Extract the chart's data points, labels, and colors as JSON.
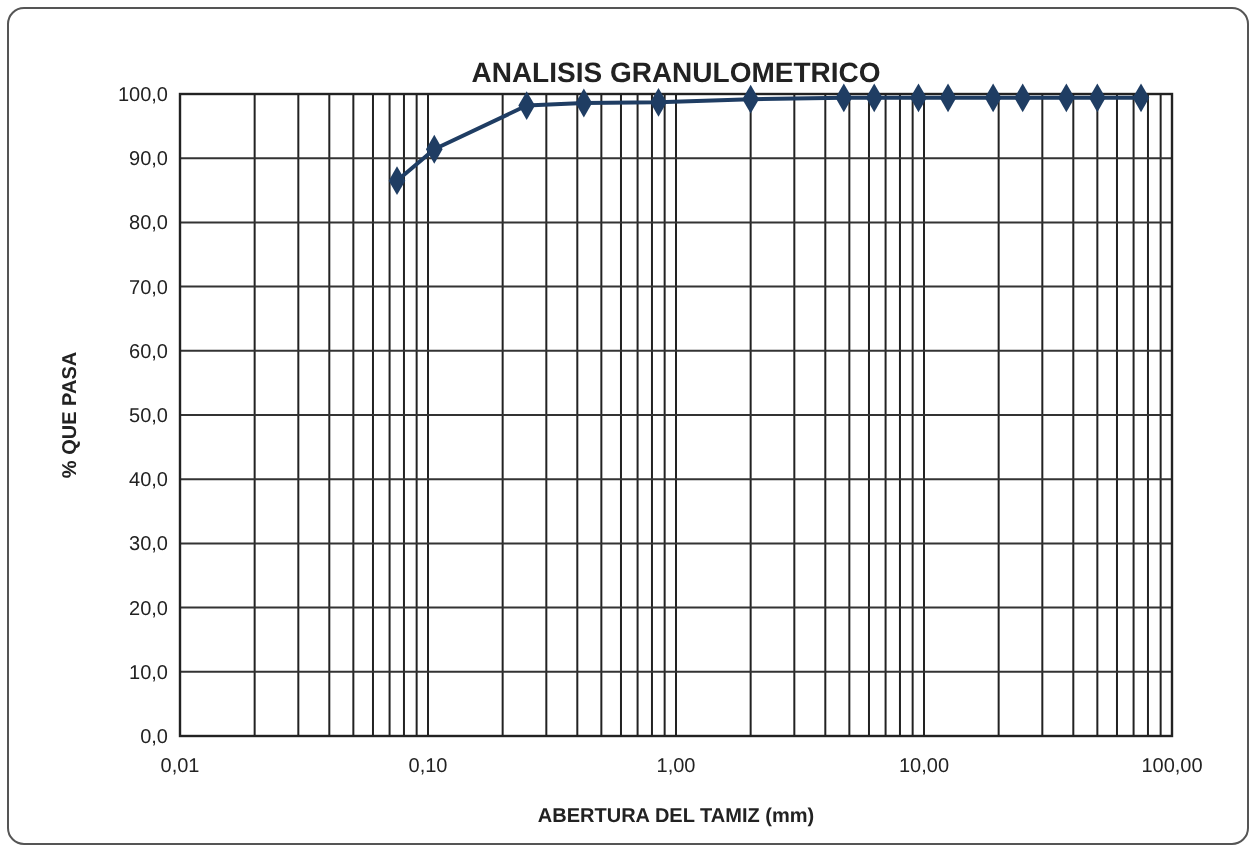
{
  "chart_data": {
    "type": "line",
    "title": "ANALISIS GRANULOMETRICO",
    "xlabel": "ABERTURA DEL TAMIZ (mm)",
    "ylabel": "% QUE PASA",
    "log": "x",
    "grid": true,
    "marker": "diamond",
    "line_style": "solid",
    "xlim": [
      0.01,
      100
    ],
    "ylim": [
      0,
      100
    ],
    "xticks": [
      {
        "value": 0.01,
        "label": "0,01"
      },
      {
        "value": 0.02,
        "label": null
      },
      {
        "value": 0.03,
        "label": null
      },
      {
        "value": 0.04,
        "label": null
      },
      {
        "value": 0.05,
        "label": null
      },
      {
        "value": 0.06,
        "label": null
      },
      {
        "value": 0.07,
        "label": null
      },
      {
        "value": 0.08,
        "label": null
      },
      {
        "value": 0.09,
        "label": null
      },
      {
        "value": 0.1,
        "label": "0,10"
      },
      {
        "value": 0.2,
        "label": null
      },
      {
        "value": 0.3,
        "label": null
      },
      {
        "value": 0.4,
        "label": null
      },
      {
        "value": 0.5,
        "label": null
      },
      {
        "value": 0.6,
        "label": null
      },
      {
        "value": 0.7,
        "label": null
      },
      {
        "value": 0.8,
        "label": null
      },
      {
        "value": 0.9,
        "label": null
      },
      {
        "value": 1,
        "label": "1,00"
      },
      {
        "value": 2,
        "label": null
      },
      {
        "value": 3,
        "label": null
      },
      {
        "value": 4,
        "label": null
      },
      {
        "value": 5,
        "label": null
      },
      {
        "value": 6,
        "label": null
      },
      {
        "value": 7,
        "label": null
      },
      {
        "value": 8,
        "label": null
      },
      {
        "value": 9,
        "label": null
      },
      {
        "value": 10,
        "label": "10,00"
      },
      {
        "value": 20,
        "label": null
      },
      {
        "value": 30,
        "label": null
      },
      {
        "value": 40,
        "label": null
      },
      {
        "value": 50,
        "label": null
      },
      {
        "value": 60,
        "label": null
      },
      {
        "value": 70,
        "label": null
      },
      {
        "value": 80,
        "label": null
      },
      {
        "value": 90,
        "label": null
      },
      {
        "value": 100,
        "label": "100,00"
      }
    ],
    "yticks": [
      {
        "value": 0,
        "label": "0,0"
      },
      {
        "value": 10,
        "label": "10,0"
      },
      {
        "value": 20,
        "label": "20,0"
      },
      {
        "value": 30,
        "label": "30,0"
      },
      {
        "value": 40,
        "label": "40,0"
      },
      {
        "value": 50,
        "label": "50,0"
      },
      {
        "value": 60,
        "label": "60,0"
      },
      {
        "value": 70,
        "label": "70,0"
      },
      {
        "value": 80,
        "label": "80,0"
      },
      {
        "value": 90,
        "label": "90,0"
      },
      {
        "value": 100,
        "label": "100,0"
      }
    ],
    "x": [
      0.075,
      0.106,
      0.25,
      0.425,
      0.85,
      2,
      4.75,
      6.3,
      9.5,
      12.5,
      19,
      25,
      37.5,
      50,
      75
    ],
    "series": [
      {
        "color": "#1f3d63",
        "values": [
          86.5,
          91.4,
          98.2,
          98.6,
          98.7,
          99.2,
          99.4,
          99.4,
          99.4,
          99.4,
          99.4,
          99.4,
          99.4,
          99.4,
          99.4
        ]
      }
    ]
  }
}
